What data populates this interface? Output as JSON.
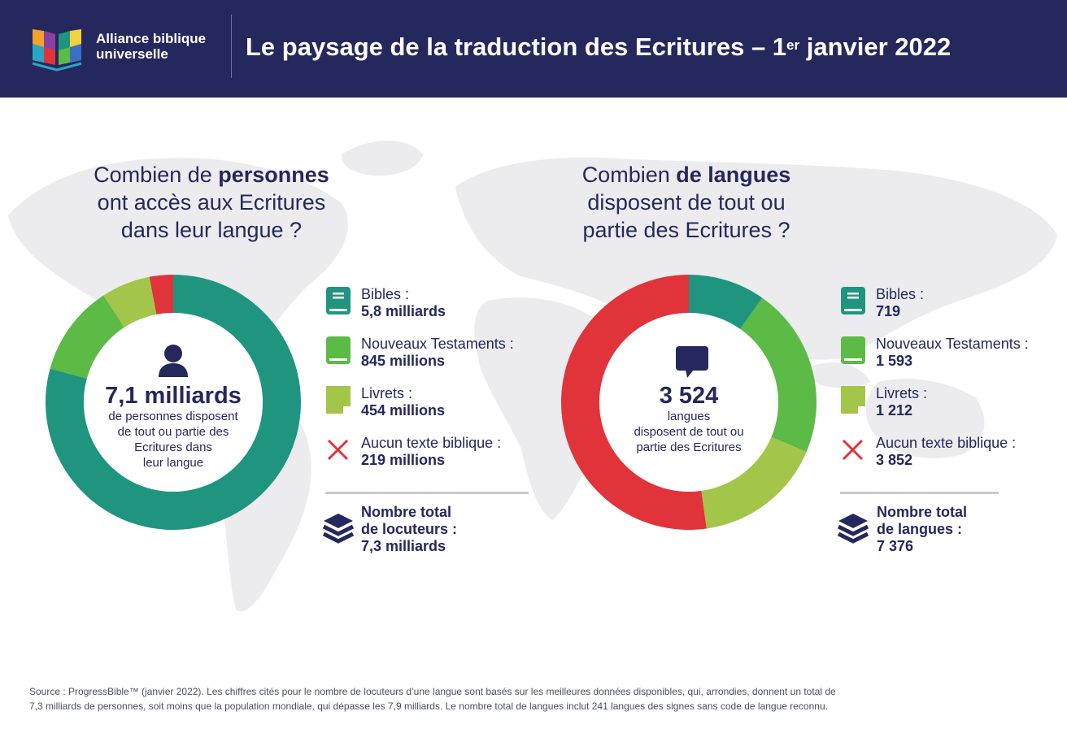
{
  "header": {
    "org_name_line1": "Alliance biblique",
    "org_name_line2": "universelle",
    "title_main": "Le paysage de la traduction des Ecritures – 1",
    "title_sup": "er",
    "title_end": " janvier 2022"
  },
  "left": {
    "question_pre": "Combien de ",
    "question_bold": "personnes",
    "question_line2": "ont accès aux Ecritures",
    "question_line3": "dans leur langue ?",
    "center_big": "7,1 milliards",
    "center_line1": "de personnes disposent",
    "center_line2": "de tout ou partie des",
    "center_line3": "Ecritures dans",
    "center_line4": "leur langue",
    "legend": [
      {
        "label": "Bibles :",
        "value": "5,8 milliards"
      },
      {
        "label": "Nouveaux Testaments :",
        "value": "845 millions"
      },
      {
        "label": "Livrets :",
        "value": "454 millions"
      },
      {
        "label": "Aucun texte biblique :",
        "value": "219 millions"
      }
    ],
    "total_line1": "Nombre total",
    "total_line2": "de locuteurs :",
    "total_line3": "7,3 milliards"
  },
  "right": {
    "question_pre": "Combien ",
    "question_bold": "de langues",
    "question_line2": "disposent de tout ou",
    "question_line3": "partie des Ecritures ?",
    "center_big": "3 524",
    "center_line1": "langues",
    "center_line2": "disposent de tout ou",
    "center_line3": "partie des Ecritures",
    "legend": [
      {
        "label": "Bibles :",
        "value": "719"
      },
      {
        "label": "Nouveaux Testaments :",
        "value": "1 593"
      },
      {
        "label": "Livrets :",
        "value": "1 212"
      },
      {
        "label": "Aucun texte biblique :",
        "value": "3 852"
      }
    ],
    "total_line1": "Nombre total",
    "total_line2": "de langues :",
    "total_line3": "7 376"
  },
  "colors": {
    "bibles": "#1f9580",
    "nt": "#5cba47",
    "livrets": "#a3c54a",
    "none": "#e0343a",
    "navy": "#25285c"
  },
  "icons": {
    "bibles": "bible-book-icon",
    "nt": "new-testament-book-icon",
    "livrets": "booklet-icon",
    "none": "cross-icon",
    "total": "stack-layers-icon",
    "left_center": "person-icon",
    "right_center": "speech-bubble-icon"
  },
  "chart_data": [
    {
      "type": "pie",
      "categories": [
        "Bibles",
        "Nouveaux Testaments",
        "Livrets",
        "Aucun texte biblique"
      ],
      "values": [
        5800,
        845,
        454,
        219
      ],
      "unit": "millions"
    },
    {
      "type": "pie",
      "categories": [
        "Bibles",
        "Nouveaux Testaments",
        "Livrets",
        "Aucun texte biblique"
      ],
      "values": [
        719,
        1593,
        1212,
        3852
      ]
    }
  ],
  "source": {
    "line1": "Source : ProgressBible™ (janvier 2022). Les chiffres cités pour le nombre de locuteurs d’une langue sont basés sur les meilleures données disponibles, qui, arrondies, donnent un total de",
    "line2": "7,3 milliards de personnes, soit moins que la population mondiale, qui dépasse les 7,9 milliards. Le nombre total de langues inclut 241 langues des signes sans code de langue reconnu."
  }
}
